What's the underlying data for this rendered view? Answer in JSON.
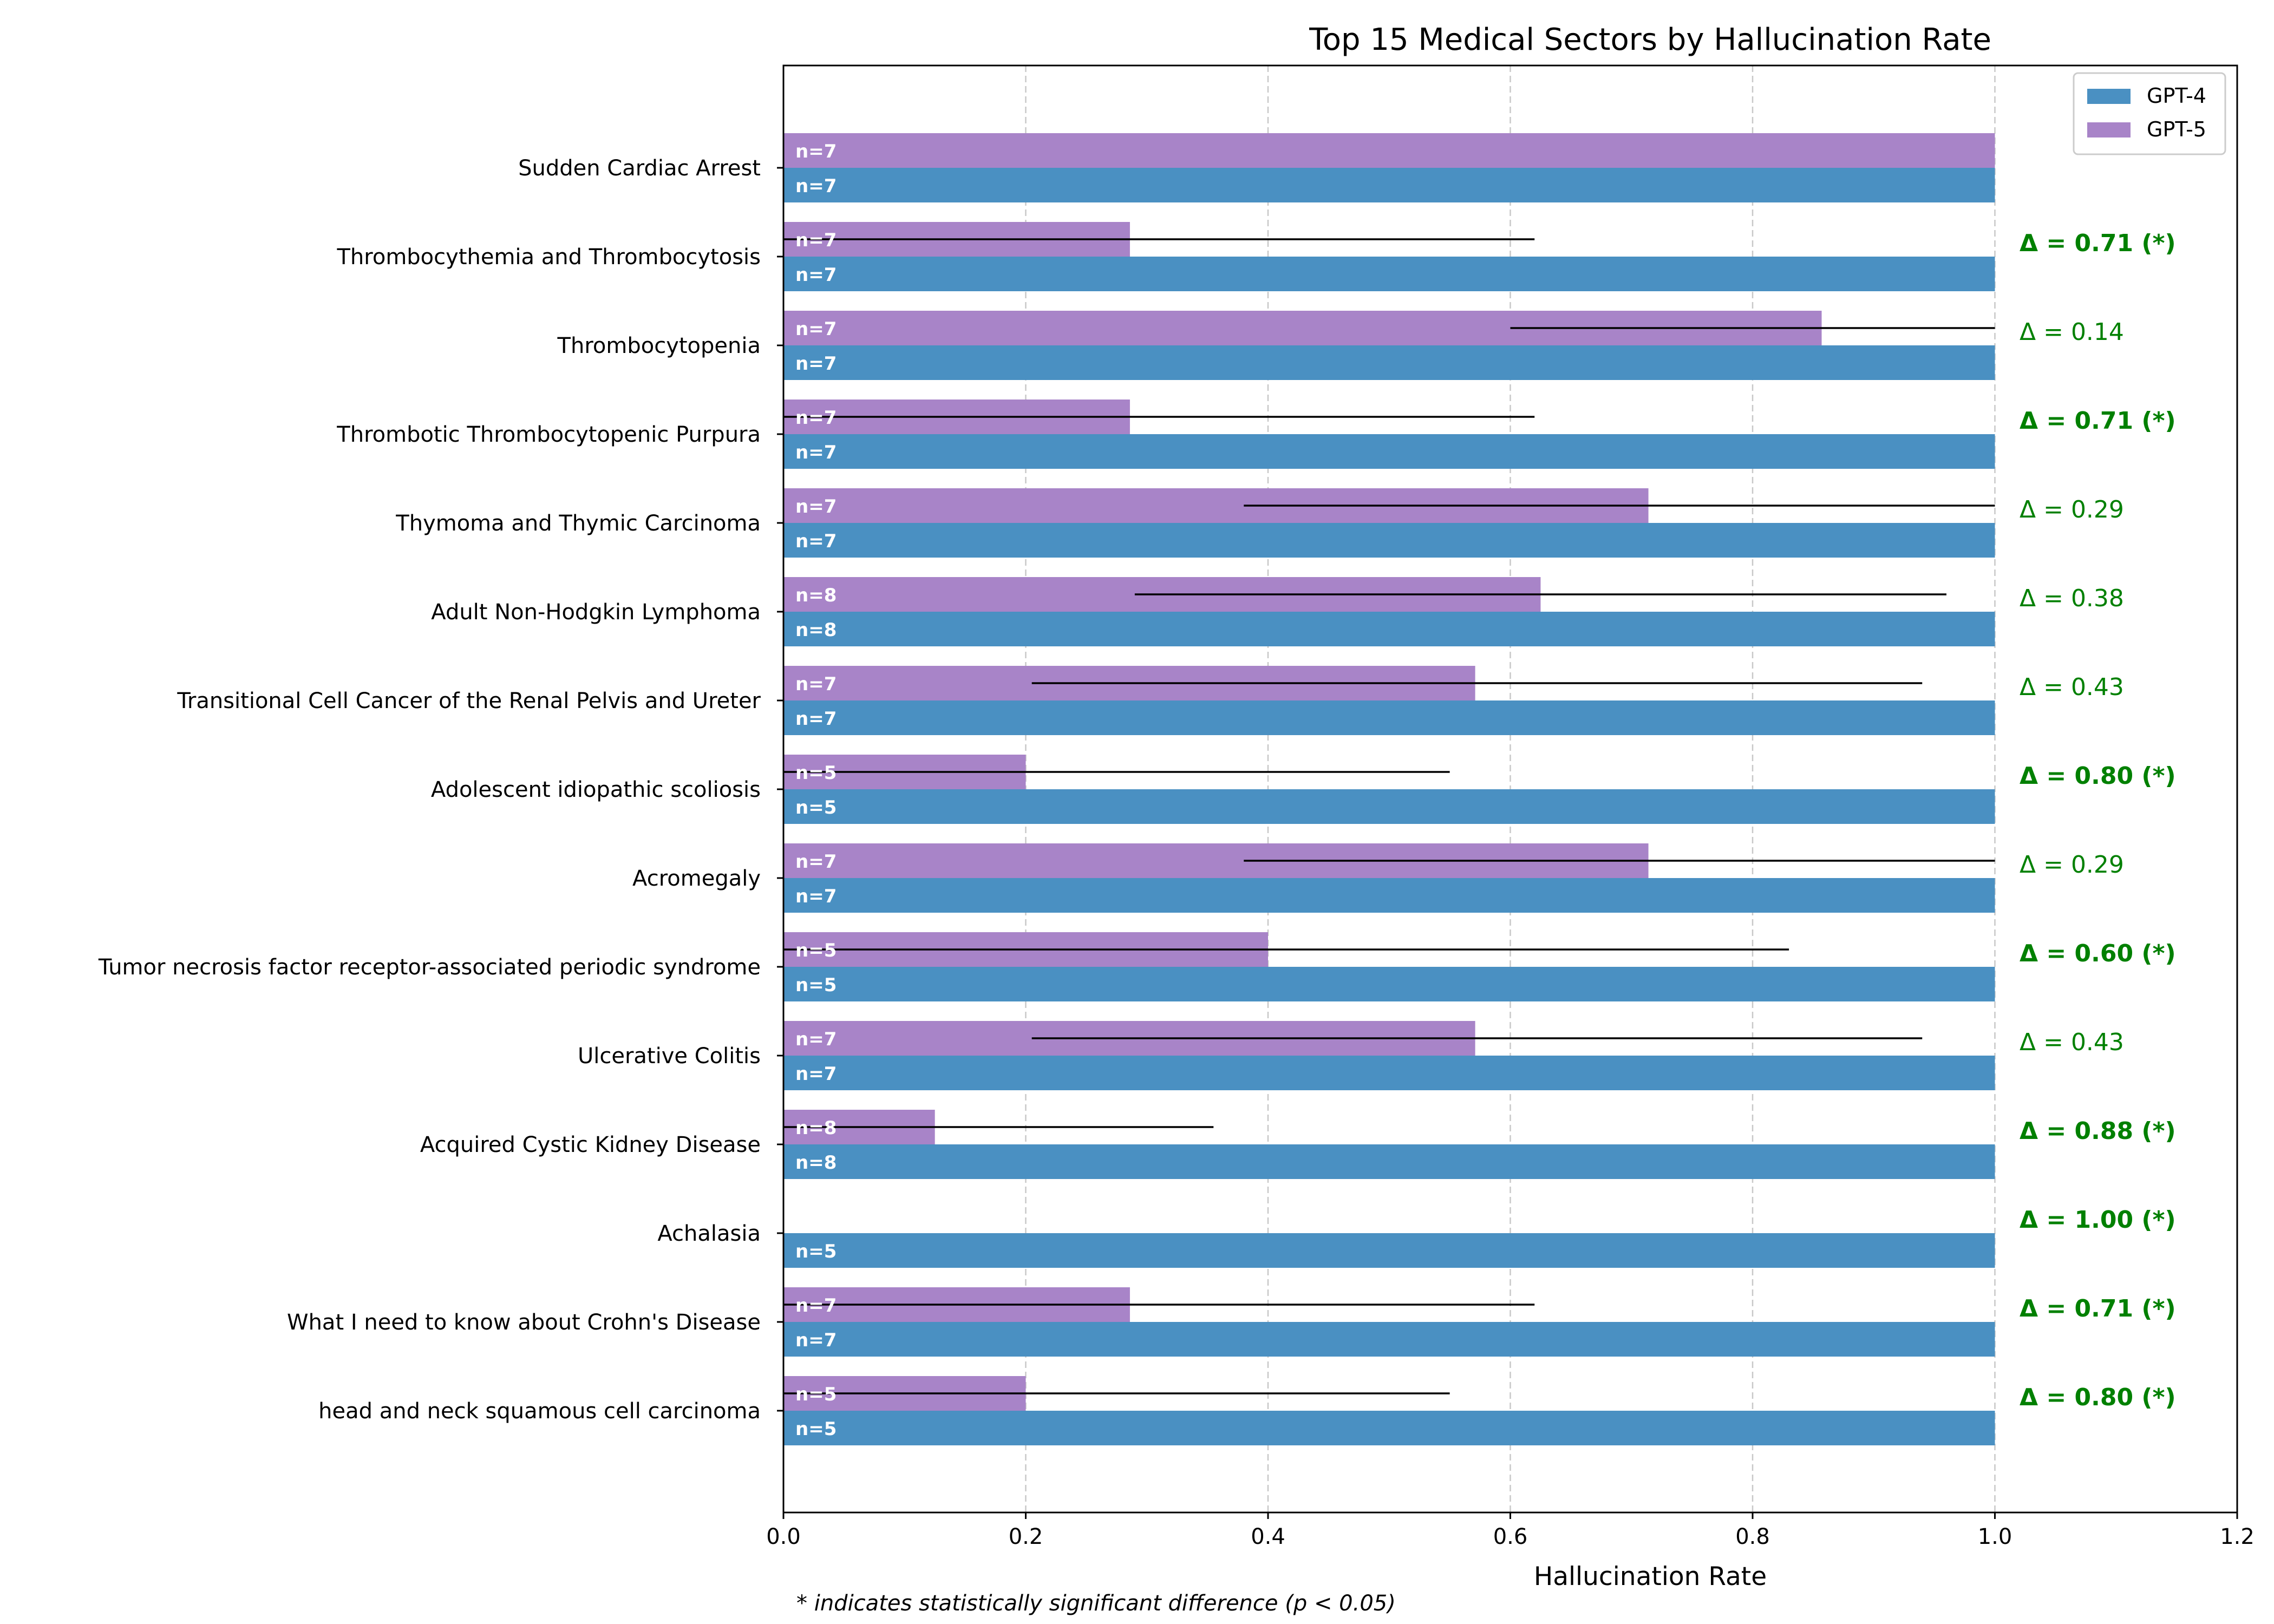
{
  "chart_data": {
    "type": "bar",
    "orientation": "horizontal",
    "title": "Top 15 Medical Sectors by Hallucination Rate",
    "xlabel": "Hallucination Rate",
    "ylabel": "",
    "xlim": [
      0,
      1.2
    ],
    "xticks": [
      0.0,
      0.2,
      0.4,
      0.6,
      0.8,
      1.0,
      1.2
    ],
    "xtick_labels": [
      "0.0",
      "0.2",
      "0.4",
      "0.6",
      "0.8",
      "1.0",
      "1.2"
    ],
    "grid": "vertical dashed",
    "legend_position": "top-right",
    "footnote": "* indicates statistically significant difference (p < 0.05)",
    "categories": [
      "Sudden Cardiac Arrest",
      "Thrombocythemia and Thrombocytosis",
      "Thrombocytopenia",
      "Thrombotic Thrombocytopenic Purpura",
      "Thymoma and Thymic Carcinoma",
      "Adult Non-Hodgkin Lymphoma",
      "Transitional Cell Cancer of the Renal Pelvis and Ureter",
      "Adolescent idiopathic scoliosis",
      "Acromegaly",
      "Tumor necrosis factor receptor-associated periodic syndrome",
      "Ulcerative Colitis",
      "Acquired Cystic Kidney Disease",
      "Achalasia",
      "What I need to know about Crohn's Disease",
      "head and neck squamous cell carcinoma"
    ],
    "series": [
      {
        "name": "GPT-4",
        "color": "#4a90c2",
        "values": [
          1,
          1,
          1,
          1,
          1,
          1,
          1,
          1,
          1,
          1,
          1,
          1,
          1,
          1,
          1
        ],
        "n_labels": [
          "n=7",
          "n=7",
          "n=7",
          "n=7",
          "n=7",
          "n=8",
          "n=7",
          "n=5",
          "n=7",
          "n=5",
          "n=7",
          "n=8",
          "n=5",
          "n=7",
          "n=5"
        ]
      },
      {
        "name": "GPT-5",
        "color": "#a884c8",
        "values": [
          1.0,
          0.286,
          0.857,
          0.286,
          0.714,
          0.625,
          0.571,
          0.2,
          0.714,
          0.4,
          0.571,
          0.125,
          0.0,
          0.286,
          0.2
        ],
        "error_low": [
          null,
          0.0,
          0.6,
          0.0,
          0.38,
          0.29,
          0.205,
          0.0,
          0.38,
          0.0,
          0.205,
          0.0,
          null,
          0.0,
          0.0
        ],
        "error_high": [
          null,
          0.62,
          1.0,
          0.62,
          1.0,
          0.96,
          0.94,
          0.55,
          1.0,
          0.83,
          0.94,
          0.355,
          null,
          0.62,
          0.55
        ],
        "n_labels": [
          "n=7",
          "n=7",
          "n=7",
          "n=7",
          "n=7",
          "n=8",
          "n=7",
          "n=5",
          "n=7",
          "n=5",
          "n=7",
          "n=8",
          "",
          "n=7",
          "n=5"
        ]
      }
    ],
    "delta_labels": [
      "",
      "Δ = 0.71 (*)",
      "Δ = 0.14",
      "Δ = 0.71 (*)",
      "Δ = 0.29",
      "Δ = 0.38",
      "Δ = 0.43",
      "Δ = 0.80 (*)",
      "Δ = 0.29",
      "Δ = 0.60 (*)",
      "Δ = 0.43",
      "Δ = 0.88 (*)",
      "Δ = 1.00 (*)",
      "Δ = 0.71 (*)",
      "Δ = 0.80 (*)"
    ],
    "delta_significant": [
      false,
      true,
      false,
      true,
      false,
      false,
      false,
      true,
      false,
      true,
      false,
      true,
      true,
      true,
      true
    ],
    "delta_color": "#008000"
  }
}
